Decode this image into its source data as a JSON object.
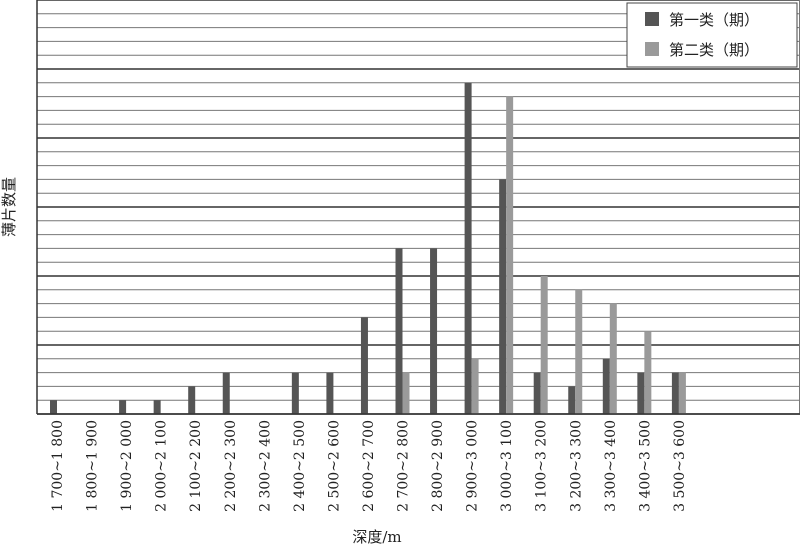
{
  "chart_data": {
    "type": "bar",
    "xlabel": "深度/m",
    "ylabel": "薄片数量",
    "categories": [
      "1 700~1 800",
      "1 800~1 900",
      "1 900~2 000",
      "2 000~2 100",
      "2 100~2 200",
      "2 200~2 300",
      "2 300~2 400",
      "2 400~2 500",
      "2 500~2 600",
      "2 600~2 700",
      "2 700~2 800",
      "2 800~2 900",
      "2 900~3 000",
      "3 000~3 100",
      "3 100~3 200",
      "3 200~3 300",
      "3 300~3 400",
      "3 400~3 500",
      "3 500~3 600"
    ],
    "series": [
      {
        "name": "第一类（期）",
        "color": "#555555",
        "values": [
          1,
          0,
          1,
          1,
          2,
          3,
          0,
          3,
          3,
          7,
          12,
          12,
          24,
          17,
          3,
          2,
          4,
          3,
          3
        ]
      },
      {
        "name": "第二类（期）",
        "color": "#9a9a9a",
        "values": [
          0,
          0,
          0,
          0,
          0,
          0,
          0,
          0,
          0,
          0,
          3,
          0,
          4,
          23,
          10,
          9,
          8,
          6,
          3
        ]
      }
    ],
    "ylim": [
      0,
      30
    ],
    "minor_grid_step": 1,
    "major_grid_step": 5,
    "grid": true,
    "legend_position": "top-right"
  }
}
